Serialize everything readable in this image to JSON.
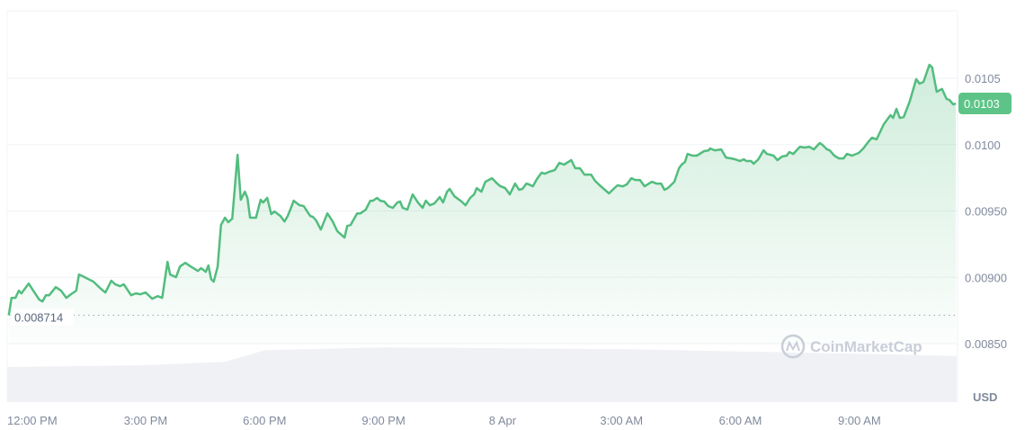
{
  "chart_data": {
    "type": "line",
    "currency_label": "USD",
    "watermark": "CoinMarketCap",
    "baseline_value": "0.008714",
    "current_value": "0.0103",
    "colors": {
      "line": "#52bd7e",
      "current_badge": "#5dc487",
      "volume": "#eff1f5",
      "grid": "#eff2f5"
    },
    "grid": true,
    "ylim": [
      0.0085,
      0.0105
    ],
    "yticks": [
      "0.00850",
      "0.00900",
      "0.00950",
      "0.0100",
      "0.0105"
    ],
    "ytick_values": [
      0.0085,
      0.009,
      0.0095,
      0.01,
      0.0105
    ],
    "xticks": [
      {
        "label": "12:00 PM",
        "time": "7 Apr 12:00"
      },
      {
        "label": "3:00 PM",
        "time": "7 Apr 15:00"
      },
      {
        "label": "6:00 PM",
        "time": "7 Apr 18:00"
      },
      {
        "label": "9:00 PM",
        "time": "7 Apr 21:00"
      },
      {
        "label": "8 Apr",
        "time": "8 Apr 00:00"
      },
      {
        "label": "3:00 AM",
        "time": "8 Apr 03:00"
      },
      {
        "label": "6:00 AM",
        "time": "8 Apr 06:00"
      },
      {
        "label": "9:00 AM",
        "time": "8 Apr 09:00"
      }
    ],
    "series": [
      {
        "points": [
          [
            "7 Apr 11:33",
            0.008714
          ],
          [
            "7 Apr 11:37",
            0.008845
          ],
          [
            "7 Apr 11:43",
            0.008845
          ],
          [
            "7 Apr 11:48",
            0.008899
          ],
          [
            "7 Apr 11:52",
            0.008879
          ],
          [
            "7 Apr 12:03",
            0.008953
          ],
          [
            "7 Apr 12:10",
            0.008899
          ],
          [
            "7 Apr 12:19",
            0.008831
          ],
          [
            "7 Apr 12:24",
            0.008818
          ],
          [
            "7 Apr 12:29",
            0.008865
          ],
          [
            "7 Apr 12:34",
            0.008865
          ],
          [
            "7 Apr 12:44",
            0.008926
          ],
          [
            "7 Apr 12:52",
            0.008899
          ],
          [
            "7 Apr 13:00",
            0.008845
          ],
          [
            "7 Apr 13:07",
            0.008872
          ],
          [
            "7 Apr 13:15",
            0.008899
          ],
          [
            "7 Apr 13:19",
            0.009021
          ],
          [
            "7 Apr 13:25",
            0.009008
          ],
          [
            "7 Apr 13:33",
            0.008987
          ],
          [
            "7 Apr 13:41",
            0.008967
          ],
          [
            "7 Apr 13:51",
            0.008919
          ],
          [
            "7 Apr 13:59",
            0.008885
          ],
          [
            "7 Apr 14:08",
            0.008974
          ],
          [
            "7 Apr 14:14",
            0.008947
          ],
          [
            "7 Apr 14:21",
            0.008933
          ],
          [
            "7 Apr 14:27",
            0.008947
          ],
          [
            "7 Apr 14:38",
            0.008865
          ],
          [
            "7 Apr 14:45",
            0.008879
          ],
          [
            "7 Apr 14:52",
            0.008872
          ],
          [
            "7 Apr 15:00",
            0.008885
          ],
          [
            "7 Apr 15:10",
            0.008838
          ],
          [
            "7 Apr 15:18",
            0.008858
          ],
          [
            "7 Apr 15:25",
            0.008845
          ],
          [
            "7 Apr 15:33",
            0.009116
          ],
          [
            "7 Apr 15:37",
            0.009021
          ],
          [
            "7 Apr 15:46",
            0.009001
          ],
          [
            "7 Apr 15:52",
            0.009082
          ],
          [
            "7 Apr 16:00",
            0.009109
          ],
          [
            "7 Apr 16:08",
            0.009082
          ],
          [
            "7 Apr 16:19",
            0.009048
          ],
          [
            "7 Apr 16:24",
            0.009069
          ],
          [
            "7 Apr 16:31",
            0.009041
          ],
          [
            "7 Apr 16:35",
            0.009089
          ],
          [
            "7 Apr 16:39",
            0.008987
          ],
          [
            "7 Apr 16:43",
            0.008967
          ],
          [
            "7 Apr 16:49",
            0.009082
          ],
          [
            "7 Apr 16:54",
            0.009394
          ],
          [
            "7 Apr 17:00",
            0.009449
          ],
          [
            "7 Apr 17:05",
            0.009415
          ],
          [
            "7 Apr 17:11",
            0.009442
          ],
          [
            "7 Apr 17:19",
            0.009923
          ],
          [
            "7 Apr 17:24",
            0.009584
          ],
          [
            "7 Apr 17:30",
            0.009645
          ],
          [
            "7 Apr 17:34",
            0.009598
          ],
          [
            "7 Apr 17:38",
            0.009449
          ],
          [
            "7 Apr 17:47",
            0.009449
          ],
          [
            "7 Apr 17:54",
            0.009584
          ],
          [
            "7 Apr 17:58",
            0.009564
          ],
          [
            "7 Apr 18:04",
            0.009598
          ],
          [
            "7 Apr 18:10",
            0.009476
          ],
          [
            "7 Apr 18:15",
            0.009496
          ],
          [
            "7 Apr 18:24",
            0.009462
          ],
          [
            "7 Apr 18:30",
            0.009421
          ],
          [
            "7 Apr 18:35",
            0.009462
          ],
          [
            "7 Apr 18:42",
            0.00955
          ],
          [
            "7 Apr 18:44",
            0.009577
          ],
          [
            "7 Apr 18:53",
            0.009543
          ],
          [
            "7 Apr 18:59",
            0.009537
          ],
          [
            "7 Apr 19:09",
            0.009462
          ],
          [
            "7 Apr 19:13",
            0.009455
          ],
          [
            "7 Apr 19:18",
            0.009428
          ],
          [
            "7 Apr 19:25",
            0.00936
          ],
          [
            "7 Apr 19:35",
            0.009482
          ],
          [
            "7 Apr 19:43",
            0.009421
          ],
          [
            "7 Apr 19:50",
            0.009347
          ],
          [
            "7 Apr 20:01",
            0.009299
          ],
          [
            "7 Apr 20:05",
            0.009387
          ],
          [
            "7 Apr 20:10",
            0.009394
          ],
          [
            "7 Apr 20:20",
            0.009482
          ],
          [
            "7 Apr 20:25",
            0.009482
          ],
          [
            "7 Apr 20:33",
            0.00951
          ],
          [
            "7 Apr 20:40",
            0.009577
          ],
          [
            "7 Apr 20:44",
            0.009577
          ],
          [
            "7 Apr 20:50",
            0.009598
          ],
          [
            "7 Apr 20:55",
            0.009577
          ],
          [
            "7 Apr 21:01",
            0.009571
          ],
          [
            "7 Apr 21:07",
            0.009537
          ],
          [
            "7 Apr 21:14",
            0.009523
          ],
          [
            "7 Apr 21:21",
            0.009564
          ],
          [
            "7 Apr 21:25",
            0.009571
          ],
          [
            "7 Apr 21:29",
            0.009523
          ],
          [
            "7 Apr 21:36",
            0.00951
          ],
          [
            "7 Apr 21:44",
            0.009625
          ],
          [
            "7 Apr 21:52",
            0.009564
          ],
          [
            "7 Apr 21:59",
            0.009523
          ],
          [
            "7 Apr 22:04",
            0.009577
          ],
          [
            "7 Apr 22:10",
            0.009543
          ],
          [
            "7 Apr 22:17",
            0.009557
          ],
          [
            "7 Apr 22:25",
            0.009605
          ],
          [
            "7 Apr 22:30",
            0.009564
          ],
          [
            "7 Apr 22:36",
            0.009645
          ],
          [
            "7 Apr 22:40",
            0.009666
          ],
          [
            "7 Apr 22:47",
            0.009611
          ],
          [
            "7 Apr 22:58",
            0.009571
          ],
          [
            "7 Apr 23:04",
            0.009543
          ],
          [
            "7 Apr 23:11",
            0.009598
          ],
          [
            "7 Apr 23:17",
            0.009625
          ],
          [
            "7 Apr 23:21",
            0.009672
          ],
          [
            "7 Apr 23:28",
            0.009645
          ],
          [
            "7 Apr 23:34",
            0.00972
          ],
          [
            "7 Apr 23:44",
            0.009747
          ],
          [
            "7 Apr 23:52",
            0.009706
          ],
          [
            "7 Apr 23:57",
            0.009686
          ],
          [
            "8 Apr 00:04",
            0.009672
          ],
          [
            "8 Apr 00:11",
            0.009625
          ],
          [
            "8 Apr 00:19",
            0.009706
          ],
          [
            "8 Apr 00:25",
            0.009659
          ],
          [
            "8 Apr 00:30",
            0.009666
          ],
          [
            "8 Apr 00:36",
            0.009706
          ],
          [
            "8 Apr 00:40",
            0.0097
          ],
          [
            "8 Apr 00:46",
            0.009686
          ],
          [
            "8 Apr 00:52",
            0.00974
          ],
          [
            "8 Apr 00:59",
            0.009788
          ],
          [
            "8 Apr 01:04",
            0.009781
          ],
          [
            "8 Apr 01:10",
            0.009794
          ],
          [
            "8 Apr 01:19",
            0.009808
          ],
          [
            "8 Apr 01:26",
            0.009862
          ],
          [
            "8 Apr 01:33",
            0.009849
          ],
          [
            "8 Apr 01:44",
            0.009883
          ],
          [
            "8 Apr 01:50",
            0.009822
          ],
          [
            "8 Apr 01:57",
            0.009822
          ],
          [
            "8 Apr 02:04",
            0.009774
          ],
          [
            "8 Apr 02:14",
            0.009774
          ],
          [
            "8 Apr 02:20",
            0.009727
          ],
          [
            "8 Apr 02:27",
            0.009693
          ],
          [
            "8 Apr 02:41",
            0.009632
          ],
          [
            "8 Apr 02:48",
            0.009666
          ],
          [
            "8 Apr 02:54",
            0.009693
          ],
          [
            "8 Apr 03:02",
            0.009686
          ],
          [
            "8 Apr 03:08",
            0.0097
          ],
          [
            "8 Apr 03:15",
            0.009747
          ],
          [
            "8 Apr 03:21",
            0.009733
          ],
          [
            "8 Apr 03:28",
            0.009733
          ],
          [
            "8 Apr 03:35",
            0.009686
          ],
          [
            "8 Apr 03:46",
            0.00972
          ],
          [
            "8 Apr 03:53",
            0.009706
          ],
          [
            "8 Apr 04:00",
            0.009706
          ],
          [
            "8 Apr 04:05",
            0.009659
          ],
          [
            "8 Apr 04:10",
            0.009672
          ],
          [
            "8 Apr 04:20",
            0.00972
          ],
          [
            "8 Apr 04:27",
            0.009822
          ],
          [
            "8 Apr 04:31",
            0.009849
          ],
          [
            "8 Apr 04:36",
            0.009869
          ],
          [
            "8 Apr 04:40",
            0.00993
          ],
          [
            "8 Apr 04:47",
            0.009917
          ],
          [
            "8 Apr 04:54",
            0.009917
          ],
          [
            "8 Apr 05:05",
            0.009951
          ],
          [
            "8 Apr 05:12",
            0.009957
          ],
          [
            "8 Apr 05:14",
            0.009971
          ],
          [
            "8 Apr 05:21",
            0.009957
          ],
          [
            "8 Apr 05:31",
            0.009964
          ],
          [
            "8 Apr 05:38",
            0.009903
          ],
          [
            "8 Apr 05:46",
            0.009896
          ],
          [
            "8 Apr 05:52",
            0.009889
          ],
          [
            "8 Apr 05:59",
            0.009876
          ],
          [
            "8 Apr 06:05",
            0.009889
          ],
          [
            "8 Apr 06:09",
            0.009876
          ],
          [
            "8 Apr 06:16",
            0.009876
          ],
          [
            "8 Apr 06:20",
            0.009856
          ],
          [
            "8 Apr 06:27",
            0.009889
          ],
          [
            "8 Apr 06:35",
            0.009957
          ],
          [
            "8 Apr 06:40",
            0.00993
          ],
          [
            "8 Apr 06:50",
            0.009917
          ],
          [
            "8 Apr 06:56",
            0.009883
          ],
          [
            "8 Apr 07:03",
            0.00991
          ],
          [
            "8 Apr 07:10",
            0.009917
          ],
          [
            "8 Apr 07:14",
            0.009944
          ],
          [
            "8 Apr 07:20",
            0.00993
          ],
          [
            "8 Apr 07:30",
            0.009984
          ],
          [
            "8 Apr 07:37",
            0.009978
          ],
          [
            "8 Apr 07:44",
            0.009984
          ],
          [
            "8 Apr 07:51",
            0.009964
          ],
          [
            "8 Apr 08:00",
            0.010012
          ],
          [
            "8 Apr 08:04",
            0.009998
          ],
          [
            "8 Apr 08:11",
            0.009964
          ],
          [
            "8 Apr 08:15",
            0.009957
          ],
          [
            "8 Apr 08:22",
            0.009917
          ],
          [
            "8 Apr 08:29",
            0.009896
          ],
          [
            "8 Apr 08:36",
            0.009896
          ],
          [
            "8 Apr 08:41",
            0.00993
          ],
          [
            "8 Apr 08:49",
            0.009917
          ],
          [
            "8 Apr 08:59",
            0.009937
          ],
          [
            "8 Apr 09:06",
            0.009971
          ],
          [
            "8 Apr 09:13",
            0.010018
          ],
          [
            "8 Apr 09:19",
            0.010052
          ],
          [
            "8 Apr 09:26",
            0.010039
          ],
          [
            "8 Apr 09:37",
            0.010154
          ],
          [
            "8 Apr 09:47",
            0.010222
          ],
          [
            "8 Apr 09:51",
            0.010202
          ],
          [
            "8 Apr 09:56",
            0.010269
          ],
          [
            "8 Apr 10:01",
            0.010202
          ],
          [
            "8 Apr 10:07",
            0.010208
          ],
          [
            "8 Apr 10:16",
            0.010324
          ],
          [
            "8 Apr 10:26",
            0.010493
          ],
          [
            "8 Apr 10:31",
            0.010459
          ],
          [
            "8 Apr 10:37",
            0.010473
          ],
          [
            "8 Apr 10:46",
            0.010602
          ],
          [
            "8 Apr 10:50",
            0.010582
          ],
          [
            "8 Apr 10:57",
            0.010398
          ],
          [
            "8 Apr 11:05",
            0.010419
          ],
          [
            "8 Apr 11:12",
            0.010344
          ],
          [
            "8 Apr 11:16",
            0.010337
          ],
          [
            "8 Apr 11:22",
            0.010303
          ],
          [
            "8 Apr 11:26",
            0.01031
          ]
        ]
      }
    ],
    "volume_relative": [
      [
        "7 Apr 11:33",
        0.61
      ],
      [
        "7 Apr 15:00",
        0.64
      ],
      [
        "7 Apr 17:00",
        0.7
      ],
      [
        "7 Apr 18:00",
        0.9
      ],
      [
        "7 Apr 21:00",
        0.95
      ],
      [
        "8 Apr 03:00",
        0.92
      ],
      [
        "8 Apr 06:00",
        0.88
      ],
      [
        "8 Apr 09:00",
        0.84
      ],
      [
        "8 Apr 11:26",
        0.8
      ]
    ]
  }
}
